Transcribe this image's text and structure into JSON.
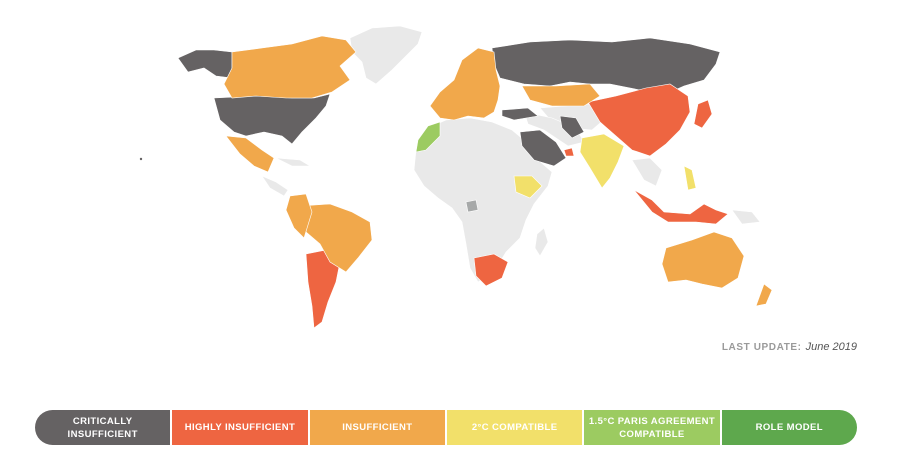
{
  "map": {
    "colors": {
      "critically": "#656263",
      "highly": "#ee6541",
      "insufficient": "#f1a84b",
      "two_c": "#f2e06a",
      "paris": "#9ccb61",
      "role": "#5ea84d",
      "no_data": "#e9e9e9",
      "other": "#a7a9a9"
    }
  },
  "last_update": {
    "label": "LAST UPDATE:",
    "date": "June 2019"
  },
  "legend": {
    "items": [
      {
        "label": "CRITICALLY INSUFFICIENT",
        "color": "#656263"
      },
      {
        "label": "HIGHLY INSUFFICIENT",
        "color": "#ee6541"
      },
      {
        "label": "INSUFFICIENT",
        "color": "#f1a84b"
      },
      {
        "label": "2°C COMPATIBLE",
        "color": "#f2e06a"
      },
      {
        "label": "1.5°C PARIS AGREEMENT COMPATIBLE",
        "color": "#9ccb61"
      },
      {
        "label": "ROLE MODEL",
        "color": "#5ea84d"
      }
    ]
  }
}
